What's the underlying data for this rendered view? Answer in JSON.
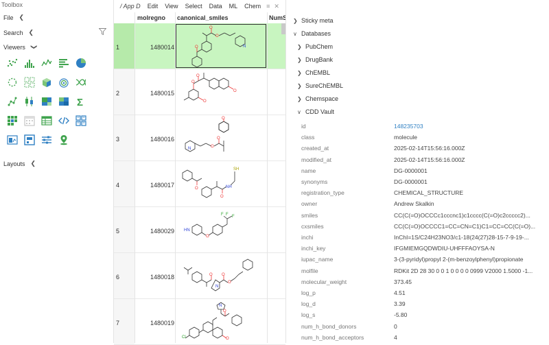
{
  "toolbox": {
    "title": "Toolbox",
    "file": "File",
    "search": "Search",
    "viewers": "Viewers",
    "layouts": "Layouts",
    "viewer_icons": [
      "scatter-plot-icon",
      "histogram-icon",
      "line-chart-icon",
      "bar-chart-icon",
      "pie-chart-icon",
      "network-icon",
      "matrix-plot-icon",
      "3d-scatter-icon",
      "density-plot-icon",
      "correlation-icon",
      "tree-icon",
      "box-plot-icon",
      "tree-map-icon",
      "heat-map-icon",
      "statistics-icon",
      "form-icon",
      "calendar-icon",
      "grid-icon",
      "html-icon",
      "tile-viewer-icon",
      "chart-panel-icon",
      "markup-icon",
      "filters-icon",
      "map-icon"
    ]
  },
  "grid": {
    "path": "/ App D",
    "menu": [
      "Edit",
      "View",
      "Select",
      "Data",
      "ML",
      "Chem"
    ],
    "menu_icons": [
      "≡",
      "✕"
    ],
    "columns": [
      "molregno",
      "canonical_smiles",
      "NumS"
    ],
    "rows": [
      {
        "n": "1",
        "molregno": "1480014",
        "selected": true
      },
      {
        "n": "2",
        "molregno": "1480015",
        "selected": false
      },
      {
        "n": "3",
        "molregno": "1480016",
        "selected": false
      },
      {
        "n": "4",
        "molregno": "1480017",
        "selected": false
      },
      {
        "n": "5",
        "molregno": "1480029",
        "selected": false
      },
      {
        "n": "6",
        "molregno": "1480018",
        "selected": false
      },
      {
        "n": "7",
        "molregno": "1480019",
        "selected": false
      }
    ],
    "row_labels": {
      "r1": "1",
      "r2": "2",
      "r3": "3",
      "r4": "4",
      "r5": "5",
      "r6": "6",
      "r7": "7"
    },
    "molregnos": {
      "r1": "1480014",
      "r2": "1480015",
      "r3": "1480016",
      "r4": "1480017",
      "r5": "1480029",
      "r6": "1480018",
      "r7": "1480019"
    },
    "atom_labels": {
      "o": "O",
      "n": "N",
      "nh": "NH",
      "hn": "HN",
      "sh": "SH",
      "f": "F",
      "cl": "Cl"
    }
  },
  "panel": {
    "sections": {
      "sticky_meta": "Sticky meta",
      "databases": "Databases",
      "pubchem": "PubChem",
      "drugbank": "DrugBank",
      "chembl": "ChEMBL",
      "surechembl": "SureChEMBL",
      "chemspace": "Chemspace",
      "cdd_vault": "CDD Vault"
    },
    "props": [
      {
        "k": "id",
        "v": "148235703"
      },
      {
        "k": "class",
        "v": "molecule"
      },
      {
        "k": "created_at",
        "v": "2025-02-14T15:56:16.000Z"
      },
      {
        "k": "modified_at",
        "v": "2025-02-14T15:56:16.000Z"
      },
      {
        "k": "name",
        "v": "DG-0000001"
      },
      {
        "k": "synonyms",
        "v": "DG-0000001"
      },
      {
        "k": "registration_type",
        "v": "CHEMICAL_STRUCTURE"
      },
      {
        "k": "owner",
        "v": "Andrew Skalkin"
      },
      {
        "k": "smiles",
        "v": "CC(C(=O)OCCCc1cccnc1)c1cccc(C(=O)c2ccccc2)..."
      },
      {
        "k": "cxsmiles",
        "v": "CC(C(=O)OCCCC1=CC=CN=C1)C1=CC=CC(C(=O)..."
      },
      {
        "k": "inchi",
        "v": "InChI=1S/C24H23NO3/c1-18(24(27)28-15-7-9-19-..."
      },
      {
        "k": "inchi_key",
        "v": "IFGMIEMGQDWDIU-UHFFFAOYSA-N"
      },
      {
        "k": "iupac_name",
        "v": "3-(3-pyridyl)propyl 2-(m-benzoylphenyl)propionate"
      },
      {
        "k": "molfile",
        "v": "RDKit 2D 28 30 0 0 1 0 0 0 0 0999 V2000 1.5000 -1..."
      },
      {
        "k": "molecular_weight",
        "v": "373.45"
      },
      {
        "k": "log_p",
        "v": "4.51"
      },
      {
        "k": "log_d",
        "v": "3.39"
      },
      {
        "k": "log_s",
        "v": "-5.80"
      },
      {
        "k": "num_h_bond_donors",
        "v": "0"
      },
      {
        "k": "num_h_bond_acceptors",
        "v": "4"
      }
    ]
  }
}
